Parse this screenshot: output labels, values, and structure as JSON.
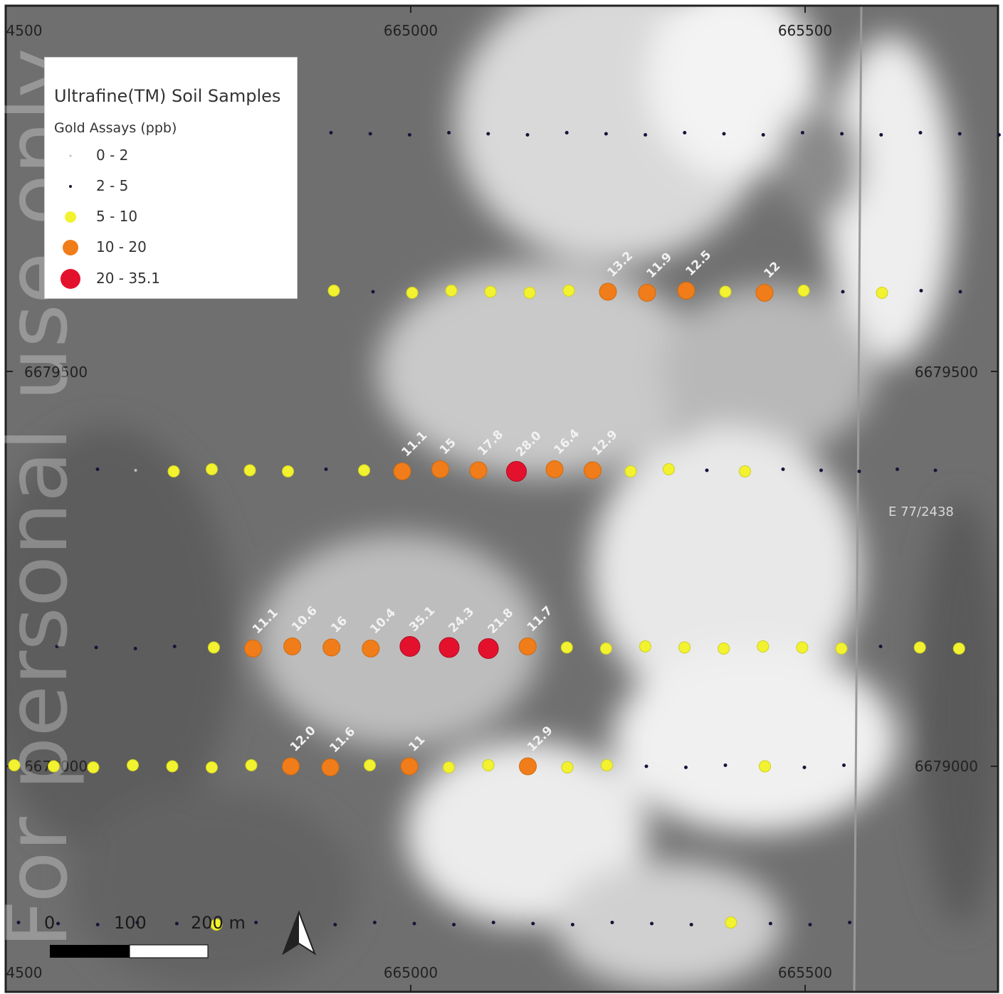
{
  "map": {
    "legend": {
      "title": "Ultrafine(TM) Soil Samples",
      "subtitle": "Gold Assays (ppb)",
      "classes": [
        {
          "label": "0 - 2",
          "color": "#bdbdbd",
          "size": "tiny"
        },
        {
          "label": "2 - 5",
          "color": "#15153a",
          "size": "small"
        },
        {
          "label": "5 - 10",
          "color": "#f2f230",
          "size": "medium"
        },
        {
          "label": "10 - 20",
          "color": "#f07d1a",
          "size": "large"
        },
        {
          "label": "20 - 35.1",
          "color": "#e4112d",
          "size": "xlarge"
        }
      ]
    },
    "grid_labels": {
      "top": [
        "4500",
        "665000",
        "665500"
      ],
      "bottom": [
        "4500",
        "665000",
        "665500"
      ],
      "left": [
        "6679500",
        "6679000"
      ],
      "right": [
        "6679500",
        "6679000"
      ]
    },
    "tenement_label": "E 77/2438",
    "scale_bar": {
      "labels": [
        "0",
        "100",
        "200 m"
      ]
    },
    "north_arrow": "north-arrow-icon",
    "sample_lines": [
      {
        "classes": [
          "2-5",
          "2-5",
          "2-5",
          "2-5",
          "2-5",
          "2-5",
          "2-5",
          "2-5",
          "2-5",
          "2-5",
          "2-5",
          "2-5",
          "2-5",
          "2-5",
          "2-5",
          "2-5",
          "2-5",
          "2-5"
        ],
        "labels": [
          "",
          "",
          "",
          "",
          "",
          "",
          "",
          "",
          "",
          "",
          "",
          "",
          "",
          "",
          "",
          "",
          "",
          ""
        ]
      },
      {
        "classes": [
          "5-10",
          "2-5",
          "5-10",
          "5-10",
          "5-10",
          "5-10",
          "5-10",
          "10-20",
          "10-20",
          "10-20",
          "5-10",
          "10-20",
          "5-10",
          "2-5",
          "5-10",
          "2-5",
          "2-5"
        ],
        "labels": [
          "",
          "",
          "",
          "",
          "",
          "",
          "",
          "13.2",
          "11.9",
          "12.5",
          "",
          "12",
          "",
          "",
          "",
          "",
          ""
        ]
      },
      {
        "classes": [
          "2-5",
          "0-2",
          "5-10",
          "5-10",
          "5-10",
          "5-10",
          "2-5",
          "5-10",
          "10-20",
          "10-20",
          "10-20",
          "20-35.1",
          "10-20",
          "10-20",
          "5-10",
          "5-10",
          "2-5",
          "5-10",
          "2-5",
          "2-5",
          "2-5",
          "2-5",
          "2-5"
        ],
        "labels": [
          "",
          "",
          "",
          "",
          "",
          "",
          "",
          "",
          "11.1",
          "15",
          "17.8",
          "28.0",
          "16.4",
          "12.9",
          "",
          "",
          "",
          "",
          "",
          "",
          "",
          "",
          ""
        ]
      },
      {
        "classes": [
          "2-5",
          "2-5",
          "2-5",
          "2-5",
          "5-10",
          "10-20",
          "10-20",
          "10-20",
          "10-20",
          "20-35.1",
          "20-35.1",
          "20-35.1",
          "10-20",
          "5-10",
          "5-10",
          "5-10",
          "5-10",
          "5-10",
          "5-10",
          "5-10",
          "5-10",
          "2-5",
          "5-10",
          "5-10"
        ],
        "labels": [
          "",
          "",
          "",
          "",
          "",
          "11.1",
          "10.6",
          "16",
          "10.4",
          "35.1",
          "24.3",
          "21.8",
          "11.7",
          "",
          "",
          "",
          "",
          "",
          "",
          "",
          "",
          "",
          "",
          ""
        ]
      },
      {
        "classes": [
          "5-10",
          "5-10",
          "5-10",
          "5-10",
          "5-10",
          "5-10",
          "5-10",
          "10-20",
          "10-20",
          "5-10",
          "10-20",
          "5-10",
          "5-10",
          "10-20",
          "5-10",
          "5-10",
          "2-5",
          "2-5",
          "2-5",
          "5-10",
          "2-5",
          "2-5"
        ],
        "labels": [
          "",
          "",
          "",
          "",
          "",
          "",
          "",
          "12.0",
          "11.6",
          "",
          "11",
          "",
          "",
          "12.9",
          "",
          "",
          "",
          "",
          "",
          "",
          "",
          ""
        ]
      },
      {
        "classes": [
          "2-5",
          "2-5",
          "2-5",
          "2-5",
          "2-5",
          "5-10",
          "2-5",
          "2-5",
          "2-5",
          "2-5",
          "2-5",
          "2-5",
          "2-5",
          "2-5",
          "2-5",
          "2-5",
          "2-5",
          "2-5",
          "5-10",
          "2-5",
          "2-5",
          "2-5"
        ],
        "labels": [
          "",
          "",
          "",
          "",
          "",
          "",
          "",
          "",
          "",
          "",
          "",
          "",
          "",
          "",
          "",
          "",
          "",
          "",
          "",
          "",
          "",
          ""
        ]
      }
    ],
    "watermark": "For personal use only"
  }
}
